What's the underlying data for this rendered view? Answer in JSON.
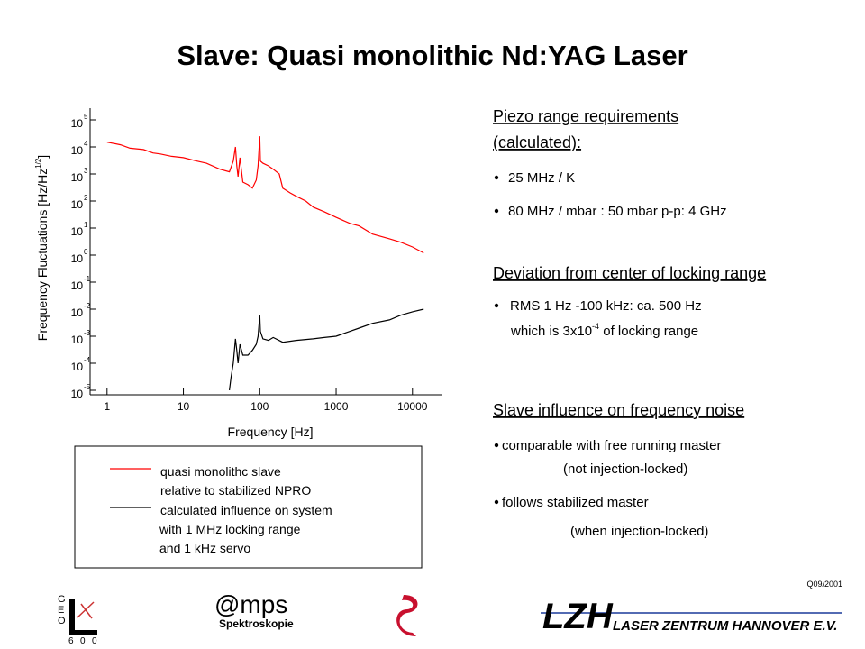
{
  "title": "Slave: Quasi monolithic Nd:YAG Laser",
  "chart_data": {
    "type": "line",
    "xlabel": "Frequency [Hz]",
    "ylabel": "Frequency Fluctuations [Hz/Hz",
    "ylabel_sup": "1/2",
    "ylabel_end": "]",
    "xscale": "log",
    "yscale": "log",
    "xlim": [
      0.6,
      24000
    ],
    "ylim": [
      1e-05,
      100000
    ],
    "xticks": [
      1,
      10,
      100,
      1000,
      10000
    ],
    "yticks": [
      {
        "value": 1e-05,
        "label": "10",
        "exponent": "-5"
      },
      {
        "value": 0.0001,
        "label": "10",
        "exponent": "-4"
      },
      {
        "value": 0.001,
        "label": "10",
        "exponent": "-3"
      },
      {
        "value": 0.01,
        "label": "10",
        "exponent": "-2"
      },
      {
        "value": 0.1,
        "label": "10",
        "exponent": "-1"
      },
      {
        "value": 1,
        "label": "10",
        "exponent": "0"
      },
      {
        "value": 10,
        "label": "10",
        "exponent": "1"
      },
      {
        "value": 100,
        "label": "10",
        "exponent": "2"
      },
      {
        "value": 1000,
        "label": "10",
        "exponent": "3"
      },
      {
        "value": 10000,
        "label": "10",
        "exponent": "4"
      },
      {
        "value": 100000,
        "label": "10",
        "exponent": "5"
      }
    ],
    "series": [
      {
        "name": "quasi monolithc slave\nrelative to stabilized NPRO",
        "color": "#ff0000",
        "x": [
          1,
          1.5,
          2,
          3,
          4,
          5,
          7,
          10,
          15,
          20,
          30,
          40,
          45,
          48,
          50,
          52,
          55,
          60,
          70,
          80,
          90,
          95,
          100,
          102,
          110,
          130,
          150,
          180,
          200,
          250,
          300,
          400,
          500,
          700,
          1000,
          1500,
          2000,
          3000,
          5000,
          7000,
          10000,
          14000
        ],
        "values": [
          15000,
          12000,
          9000,
          8000,
          6000,
          5500,
          4500,
          4000,
          3000,
          2500,
          1500,
          1200,
          3000,
          10000,
          2000,
          800,
          4000,
          500,
          400,
          300,
          600,
          2000,
          25000,
          3000,
          2500,
          2000,
          1500,
          1000,
          300,
          200,
          150,
          100,
          60,
          40,
          25,
          15,
          12,
          6,
          4,
          3,
          2,
          1.2
        ]
      },
      {
        "name": "calculated influence on system\nwith 1 MHz locking range\nand 1 kHz servo",
        "color": "#000000",
        "x": [
          40,
          42,
          45,
          48,
          50,
          52,
          55,
          60,
          70,
          80,
          90,
          95,
          100,
          102,
          110,
          130,
          150,
          200,
          300,
          500,
          700,
          1000,
          1500,
          2000,
          3000,
          5000,
          7000,
          10000,
          14000
        ],
        "values": [
          1e-05,
          3e-05,
          0.0001,
          0.0008,
          0.0003,
          0.0001,
          0.0005,
          0.0002,
          0.0002,
          0.0003,
          0.0005,
          0.001,
          0.006,
          0.0015,
          0.0008,
          0.0007,
          0.0009,
          0.0006,
          0.0007,
          0.0008,
          0.0009,
          0.001,
          0.0015,
          0.002,
          0.003,
          0.004,
          0.006,
          0.008,
          0.01
        ]
      }
    ]
  },
  "sections": [
    {
      "heading": [
        "Piezo range requirements",
        "(calculated):"
      ],
      "bullets": [
        "25 MHz / K",
        "80 MHz / mbar   : 50 mbar p-p: 4 GHz"
      ]
    },
    {
      "heading": [
        "Deviation from center of locking range"
      ],
      "bullets": [
        "RMS 1 Hz -100 kHz: ca. 500 Hz"
      ],
      "note": {
        "text": "which is 3x10",
        "sup": "-4",
        "after": " of locking range"
      }
    },
    {
      "heading": [
        "Slave influence on frequency noise"
      ],
      "bullets": [
        "comparable with free running master",
        "follows stabilized master"
      ],
      "notes": [
        "(not injection-locked)",
        "(when injection-locked)"
      ]
    }
  ],
  "footer": {
    "code": "Q09/2001",
    "geo": [
      "G",
      "E",
      "O"
    ],
    "geo_num": [
      "6",
      "0",
      "0"
    ],
    "amps": "@mps",
    "amps_sub": "Spektroskopie",
    "lzh": "LZH",
    "lzh_name": "LASER ZENTRUM HANNOVER E.V."
  }
}
